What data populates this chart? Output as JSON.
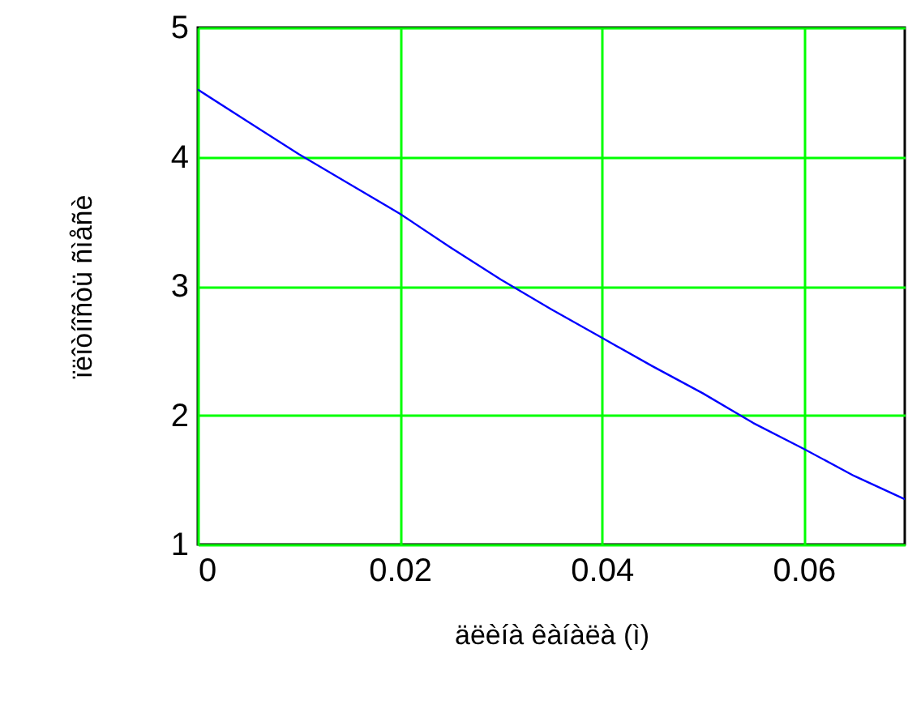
{
  "chart_data": {
    "type": "line",
    "xlabel": "äëèíà êàíàëà (ì)",
    "ylabel": "ïëîòíîñòü ñìåñè",
    "x": [
      0,
      0.005,
      0.01,
      0.015,
      0.02,
      0.025,
      0.03,
      0.035,
      0.04,
      0.045,
      0.05,
      0.055,
      0.06,
      0.065,
      0.07
    ],
    "series": [
      {
        "color": "#0000ff",
        "values": [
          4.52,
          4.27,
          4.02,
          3.79,
          3.56,
          3.3,
          3.05,
          2.82,
          2.6,
          2.38,
          2.17,
          1.94,
          1.74,
          1.53,
          1.35
        ]
      }
    ],
    "xlim": [
      0,
      0.07
    ],
    "xticks": [
      0,
      0.02,
      0.04,
      0.06
    ],
    "ylim": [
      1,
      5
    ],
    "yticks": [
      1,
      2,
      3,
      4,
      5
    ],
    "grid": true,
    "marker": "none",
    "line_style": "solid"
  }
}
